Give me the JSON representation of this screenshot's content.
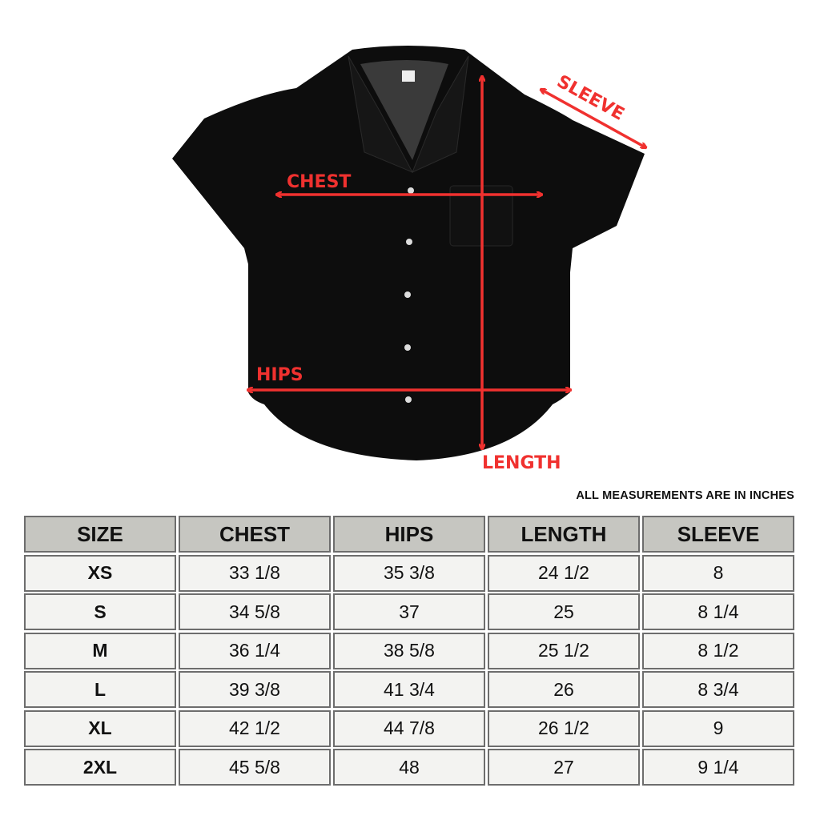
{
  "labels": {
    "chest": "CHEST",
    "hips": "HIPS",
    "length": "LENGTH",
    "sleeve": "SLEEVE"
  },
  "colors": {
    "arrow": "#f0312f",
    "header_bg": "#c6c6c1",
    "cell_bg": "#f3f3f1",
    "shirt": "#0d0d0d"
  },
  "note": "ALL MEASUREMENTS ARE IN INCHES",
  "table": {
    "headers": [
      "SIZE",
      "CHEST",
      "HIPS",
      "LENGTH",
      "SLEEVE"
    ],
    "rows": [
      [
        "XS",
        "33 1/8",
        "35 3/8",
        "24 1/2",
        "8"
      ],
      [
        "S",
        "34 5/8",
        "37",
        "25",
        "8 1/4"
      ],
      [
        "M",
        "36 1/4",
        "38 5/8",
        "25 1/2",
        "8 1/2"
      ],
      [
        "L",
        "39 3/8",
        "41 3/4",
        "26",
        "8 3/4"
      ],
      [
        "XL",
        "42 1/2",
        "44 7/8",
        "26 1/2",
        "9"
      ],
      [
        "2XL",
        "45 5/8",
        "48",
        "27",
        "9 1/4"
      ]
    ]
  }
}
